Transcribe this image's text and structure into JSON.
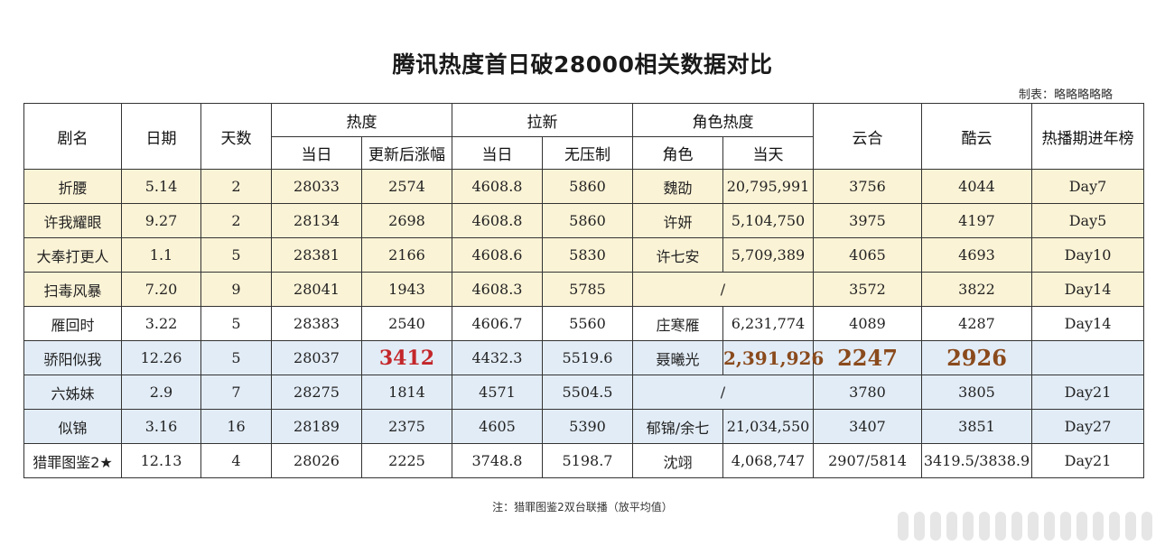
{
  "title": "腾讯热度首日破28000相关数据对比",
  "maker": "制表：略略略略略",
  "header": {
    "name": "剧名",
    "date": "日期",
    "days": "天数",
    "heat": "热度",
    "heat_day": "当日",
    "heat_rise": "更新后涨幅",
    "lx": "拉新",
    "lx_day": "当日",
    "lx_free": "无压制",
    "role_heat": "角色热度",
    "role": "角色",
    "role_day": "当天",
    "yunhe": "云合",
    "kuyun": "酷云",
    "annual": "热播期进年榜"
  },
  "rows": [
    {
      "name": "折腰",
      "date": "5.14",
      "days": "2",
      "heat_day": "28033",
      "heat_rise": "2574",
      "lx_day": "4608.8",
      "lx_free": "5860",
      "role": "魏劭",
      "role_day": "20,795,991",
      "yunhe": "3756",
      "kuyun": "4044",
      "annual": "Day7"
    },
    {
      "name": "许我耀眼",
      "date": "9.27",
      "days": "2",
      "heat_day": "28134",
      "heat_rise": "2698",
      "lx_day": "4608.8",
      "lx_free": "5860",
      "role": "许妍",
      "role_day": "5,104,750",
      "yunhe": "3975",
      "kuyun": "4197",
      "annual": "Day5"
    },
    {
      "name": "大奉打更人",
      "date": "1.1",
      "days": "5",
      "heat_day": "28381",
      "heat_rise": "2166",
      "lx_day": "4608.6",
      "lx_free": "5830",
      "role": "许七安",
      "role_day": "5,709,389",
      "yunhe": "4065",
      "kuyun": "4693",
      "annual": "Day10"
    },
    {
      "name": "扫毒风暴",
      "date": "7.20",
      "days": "9",
      "heat_day": "28041",
      "heat_rise": "1943",
      "lx_day": "4608.3",
      "lx_free": "5785",
      "role_merged": "/",
      "yunhe": "3572",
      "kuyun": "3822",
      "annual": "Day14"
    },
    {
      "name": "雁回时",
      "date": "3.22",
      "days": "5",
      "heat_day": "28383",
      "heat_rise": "2540",
      "lx_day": "4606.7",
      "lx_free": "5560",
      "role": "庄寒雁",
      "role_day": "6,231,774",
      "yunhe": "4089",
      "kuyun": "4287",
      "annual": "Day14"
    },
    {
      "name": "骄阳似我",
      "date": "12.26",
      "days": "5",
      "heat_day": "28037",
      "heat_rise": "3412",
      "lx_day": "4432.3",
      "lx_free": "5519.6",
      "role": "聂曦光",
      "role_day": "2,391,926",
      "yunhe": "2247",
      "kuyun": "2926",
      "annual": ""
    },
    {
      "name": "六姊妹",
      "date": "2.9",
      "days": "7",
      "heat_day": "28275",
      "heat_rise": "1814",
      "lx_day": "4571",
      "lx_free": "5504.5",
      "role_merged": "/",
      "yunhe": "3780",
      "kuyun": "3805",
      "annual": "Day21"
    },
    {
      "name": "似锦",
      "date": "3.16",
      "days": "16",
      "heat_day": "28189",
      "heat_rise": "2375",
      "lx_day": "4605",
      "lx_free": "5390",
      "role": "郁锦/余七",
      "role_day": "21,034,550",
      "yunhe": "3407",
      "kuyun": "3851",
      "annual": "Day27"
    },
    {
      "name": "猎罪图鉴2★",
      "date": "12.13",
      "days": "4",
      "heat_day": "28026",
      "heat_rise": "2225",
      "lx_day": "3748.8",
      "lx_free": "5198.7",
      "role": "沈翊",
      "role_day": "4,068,747",
      "yunhe": "2907/5814",
      "kuyun": "3419.5/3838.9",
      "annual": "Day21"
    }
  ],
  "note": "注：猎罪图鉴2双台联播（放平均值）",
  "colors": {
    "yellow_row": "#fbf3d6",
    "blue_row": "#e2ecf6",
    "highlight_red": "#c3262a",
    "highlight_brown": "#8a4a1c"
  }
}
